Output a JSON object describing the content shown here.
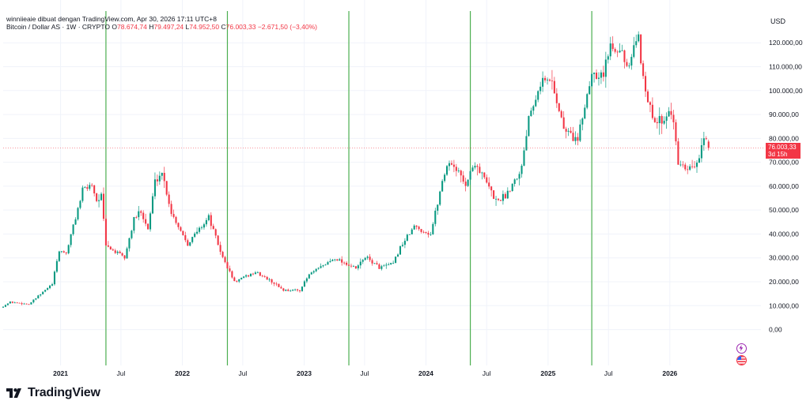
{
  "header": {
    "credit": "winniieaie dibuat dengan TradingView.com, Apr 30, 2026 17:11 UTC+8",
    "symbol": "Bitcoin / Dollar AS · 1W · CRYPTO",
    "open_label": "O",
    "open_value": "78.674,74",
    "high_label": "H",
    "high_value": "79.497,24",
    "low_label": "L",
    "low_value": "74.952,50",
    "close_label": "C",
    "close_value": "76.003,33",
    "change": "−2.671,50 (−3,40%)"
  },
  "price_badge": {
    "price": "76.003,33",
    "countdown": "3d 15h"
  },
  "brand": {
    "name": "TradingView",
    "logo": "tradingview-logo"
  },
  "icons": [
    "lightning-icon",
    "us-flag-icon"
  ],
  "colors": {
    "up": "#089981",
    "down": "#f23645",
    "vline": "#4caf50",
    "grid": "#f0f3fa",
    "axis_text": "#131722"
  },
  "chart_data": {
    "type": "candlestick",
    "currency_label": "USD",
    "ylim": [
      -15000,
      128000
    ],
    "y_ticks": [
      0,
      10000,
      20000,
      30000,
      40000,
      50000,
      60000,
      70000,
      80000,
      90000,
      100000,
      110000,
      120000
    ],
    "y_tick_labels": [
      "0,00",
      "10.000,00",
      "20.000,00",
      "30.000,00",
      "40.000,00",
      "50.000,00",
      "60.000,00",
      "70.000,00",
      "80.000,00",
      "90.000,00",
      "100.000,00",
      "110.000,00",
      "120.000,00"
    ],
    "x_ticks": [
      {
        "date": "2021-01-01",
        "label": "2021",
        "bold": true
      },
      {
        "date": "2021-07-01",
        "label": "Jul",
        "bold": false
      },
      {
        "date": "2022-01-01",
        "label": "2022",
        "bold": true
      },
      {
        "date": "2022-07-01",
        "label": "Jul",
        "bold": false
      },
      {
        "date": "2023-01-01",
        "label": "2023",
        "bold": true
      },
      {
        "date": "2023-07-01",
        "label": "Jul",
        "bold": false
      },
      {
        "date": "2024-01-01",
        "label": "2024",
        "bold": true
      },
      {
        "date": "2024-07-01",
        "label": "Jul",
        "bold": false
      },
      {
        "date": "2025-01-01",
        "label": "2025",
        "bold": true
      },
      {
        "date": "2025-07-01",
        "label": "Jul",
        "bold": false
      },
      {
        "date": "2026-01-01",
        "label": "2026",
        "bold": true
      }
    ],
    "x_range": [
      "2020-07-13",
      "2026-10-01"
    ],
    "vertical_lines": [
      "2021-05-17",
      "2022-05-16",
      "2023-05-15",
      "2024-05-13",
      "2025-05-12"
    ],
    "last_price": 76003.33,
    "price_path": [
      [
        "2020-07-13",
        9200
      ],
      [
        "2020-08-10",
        11500
      ],
      [
        "2020-10-05",
        10600
      ],
      [
        "2020-12-14",
        19000
      ],
      [
        "2021-01-04",
        33000
      ],
      [
        "2021-01-25",
        32000
      ],
      [
        "2021-02-22",
        47000
      ],
      [
        "2021-03-15",
        58000
      ],
      [
        "2021-04-12",
        61000
      ],
      [
        "2021-04-26",
        54000
      ],
      [
        "2021-05-10",
        56000
      ],
      [
        "2021-05-24",
        35000
      ],
      [
        "2021-07-19",
        30000
      ],
      [
        "2021-08-16",
        46000
      ],
      [
        "2021-09-06",
        50000
      ],
      [
        "2021-09-27",
        42000
      ],
      [
        "2021-10-18",
        62000
      ],
      [
        "2021-11-08",
        66000
      ],
      [
        "2021-12-06",
        49000
      ],
      [
        "2022-01-24",
        36000
      ],
      [
        "2022-03-28",
        47000
      ],
      [
        "2022-05-09",
        30000
      ],
      [
        "2022-06-13",
        20000
      ],
      [
        "2022-08-15",
        24000
      ],
      [
        "2022-10-10",
        19500
      ],
      [
        "2022-11-07",
        16500
      ],
      [
        "2022-12-26",
        16500
      ],
      [
        "2023-01-23",
        23000
      ],
      [
        "2023-03-20",
        28000
      ],
      [
        "2023-04-10",
        30000
      ],
      [
        "2023-06-12",
        25500
      ],
      [
        "2023-07-10",
        30500
      ],
      [
        "2023-08-21",
        26000
      ],
      [
        "2023-10-02",
        27500
      ],
      [
        "2023-10-23",
        34500
      ],
      [
        "2023-12-04",
        43000
      ],
      [
        "2024-01-22",
        40000
      ],
      [
        "2024-02-26",
        62000
      ],
      [
        "2024-03-11",
        69000
      ],
      [
        "2024-03-25",
        70000
      ],
      [
        "2024-05-06",
        61000
      ],
      [
        "2024-06-03",
        70000
      ],
      [
        "2024-08-05",
        54000
      ],
      [
        "2024-09-02",
        56000
      ],
      [
        "2024-10-21",
        68000
      ],
      [
        "2024-11-11",
        90000
      ],
      [
        "2024-12-16",
        104000
      ],
      [
        "2025-01-20",
        104000
      ],
      [
        "2025-02-24",
        84000
      ],
      [
        "2025-04-07",
        79000
      ],
      [
        "2025-05-19",
        108000
      ],
      [
        "2025-06-23",
        107000
      ],
      [
        "2025-07-14",
        119000
      ],
      [
        "2025-08-11",
        119000
      ],
      [
        "2025-09-01",
        108000
      ],
      [
        "2025-10-06",
        122000
      ],
      [
        "2025-10-13",
        112000
      ],
      [
        "2025-11-17",
        87000
      ],
      [
        "2025-12-15",
        88000
      ],
      [
        "2026-01-12",
        92000
      ],
      [
        "2026-02-02",
        70000
      ],
      [
        "2026-02-23",
        66000
      ],
      [
        "2026-03-23",
        68000
      ],
      [
        "2026-04-06",
        72000
      ],
      [
        "2026-04-20",
        78674.74
      ]
    ]
  }
}
